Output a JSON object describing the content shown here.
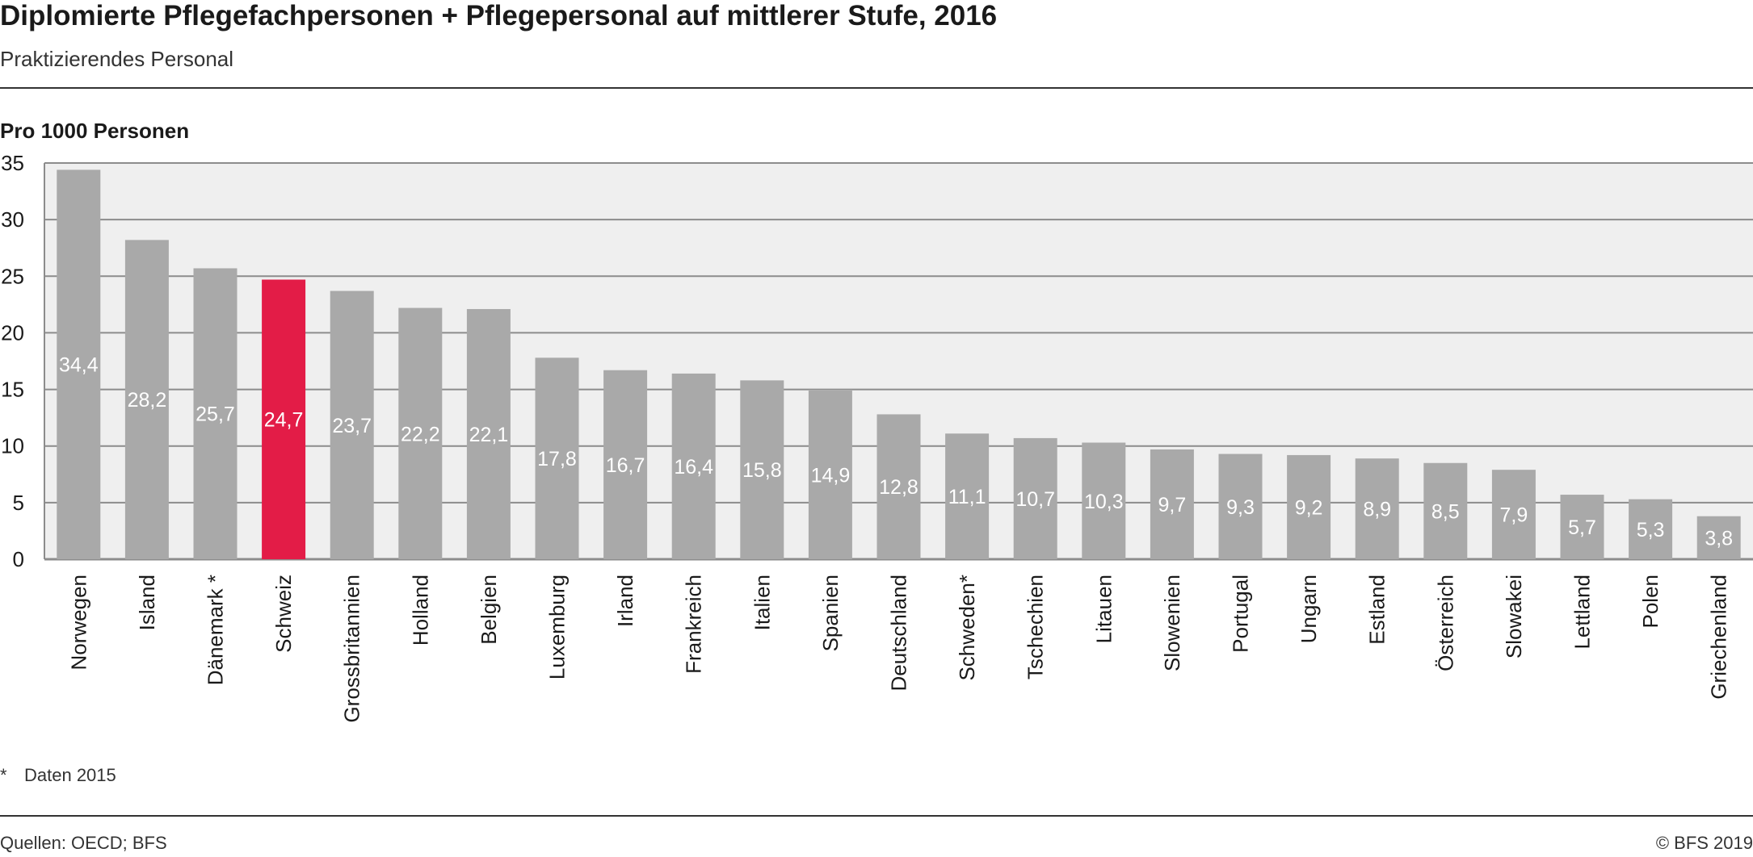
{
  "header": {
    "title": "Diplomierte Pflegefachpersonen + Pflegepersonal auf mittlerer Stufe, 2016",
    "subtitle": "Praktizierendes Personal"
  },
  "footer": {
    "footnote_marker": "*",
    "footnote_text": "Daten 2015",
    "source": "Quellen: OECD; BFS",
    "copyright": "© BFS 2019"
  },
  "colors": {
    "bar": "#a9a9a9",
    "highlight": "#e31c47",
    "plot_background": "#efefef",
    "grid": "#8c8c8c",
    "label_text": "#ffffff"
  },
  "chart_data": {
    "type": "bar",
    "title": "Diplomierte Pflegefachpersonen + Pflegepersonal auf mittlerer Stufe, 2016",
    "subtitle": "Praktizierendes Personal",
    "ylabel": "Pro 1000 Personen",
    "xlabel": "",
    "ylim": [
      0,
      35
    ],
    "yticks": [
      0,
      5,
      10,
      15,
      20,
      25,
      30,
      35
    ],
    "grid": true,
    "highlight_category": "Schweiz",
    "categories": [
      "Norwegen",
      "Island",
      "Dänemark *",
      "Schweiz",
      "Grossbritannien",
      "Holland",
      "Belgien",
      "Luxemburg",
      "Irland",
      "Frankreich",
      "Italien",
      "Spanien",
      "Deutschland",
      "Schweden*",
      "Tschechien",
      "Litauen",
      "Slowenien",
      "Portugal",
      "Ungarn",
      "Estland",
      "Österreich",
      "Slowakei",
      "Lettland",
      "Polen",
      "Griechenland"
    ],
    "values": [
      34.4,
      28.2,
      25.7,
      24.7,
      23.7,
      22.2,
      22.1,
      17.8,
      16.7,
      16.4,
      15.8,
      14.9,
      12.8,
      11.1,
      10.7,
      10.3,
      9.7,
      9.3,
      9.2,
      8.9,
      8.5,
      7.9,
      5.7,
      5.3,
      3.8
    ],
    "value_labels": [
      "34,4",
      "28,2",
      "25,7",
      "24,7",
      "23,7",
      "22,2",
      "22,1",
      "17,8",
      "16,7",
      "16,4",
      "15,8",
      "14,9",
      "12,8",
      "11,1",
      "10,7",
      "10,3",
      "9,7",
      "9,3",
      "9,2",
      "8,9",
      "8,5",
      "7,9",
      "5,7",
      "5,3",
      "3,8"
    ]
  }
}
